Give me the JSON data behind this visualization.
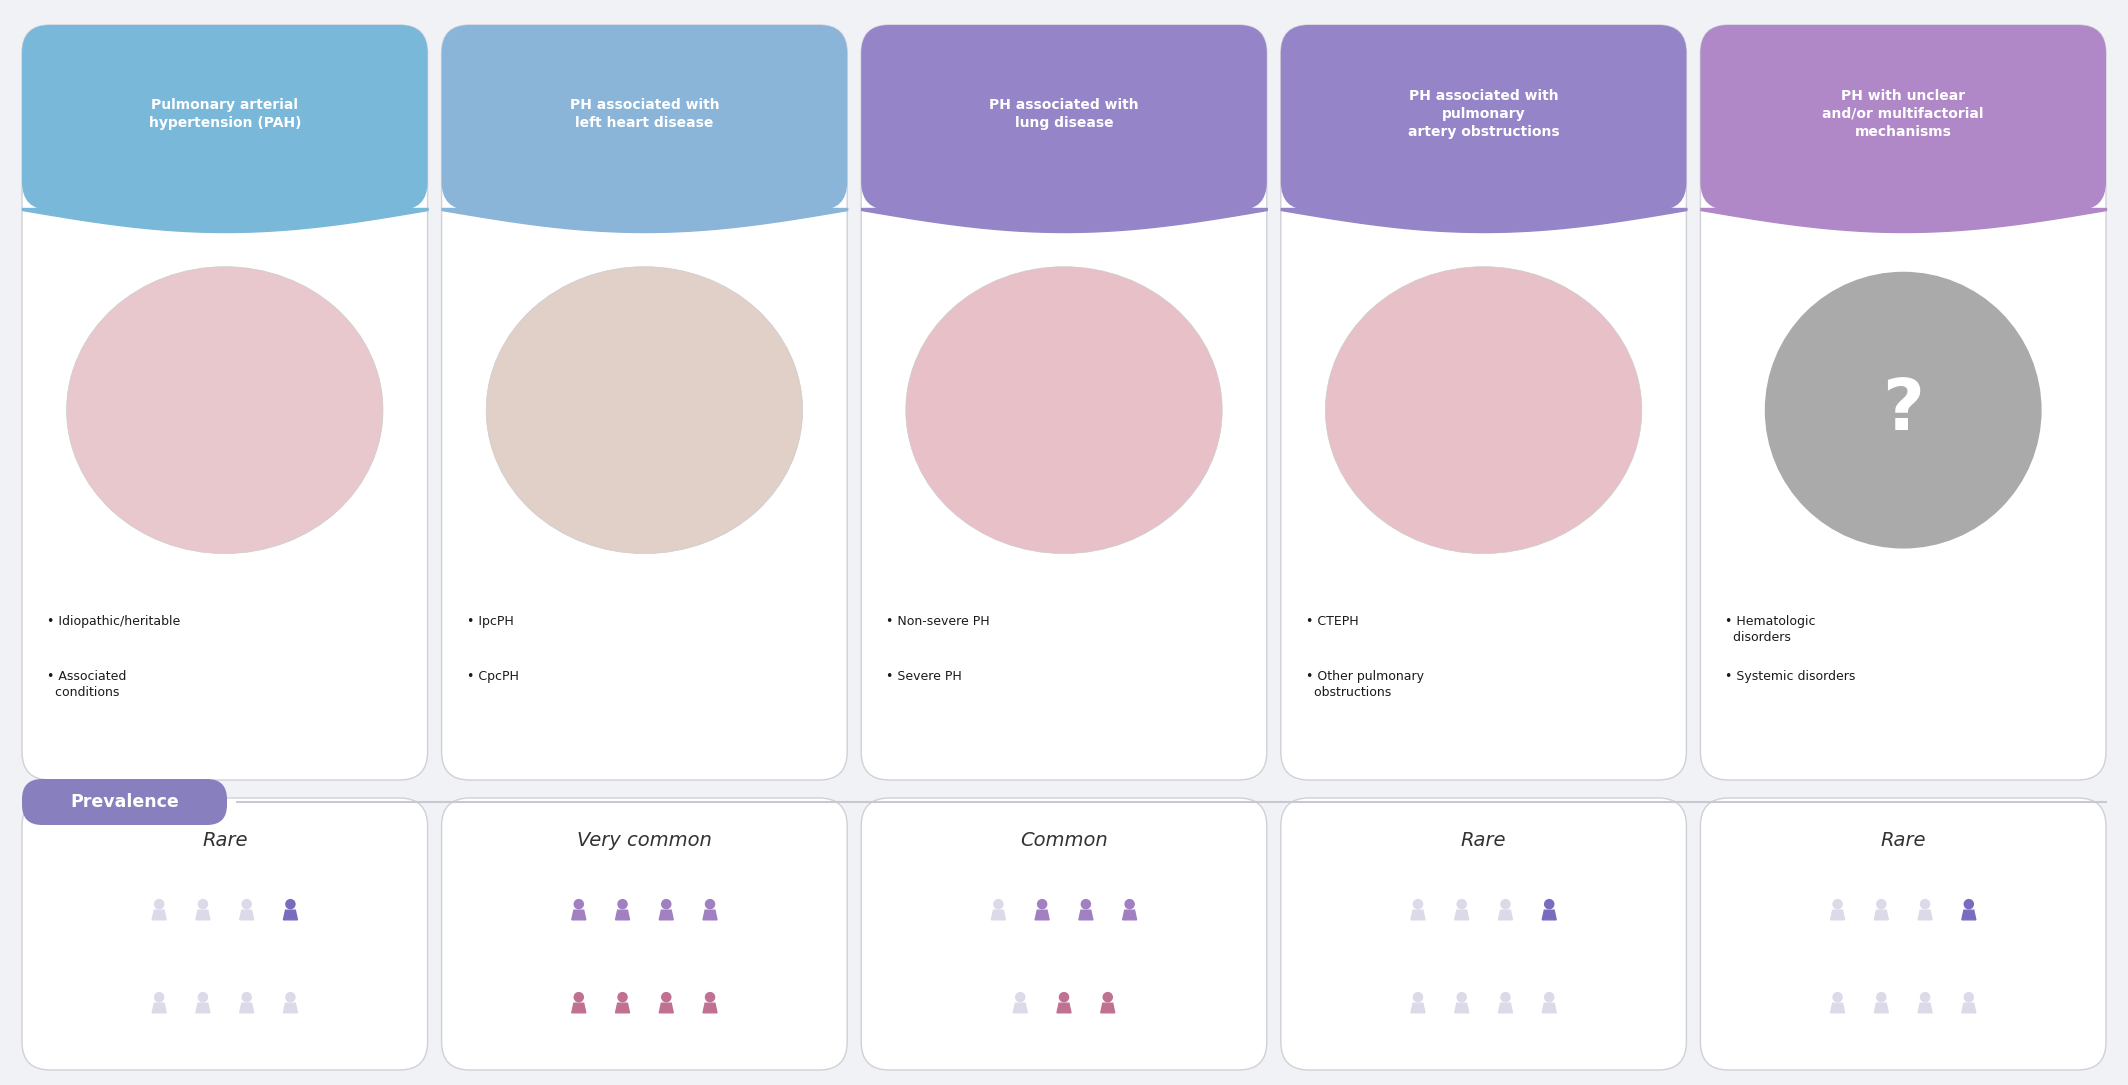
{
  "bg_color": "#f0f2f5",
  "card_bg": "#ffffff",
  "card_border": "#d0d0d8",
  "header_colors": [
    "#7ab8d9",
    "#8ab4d8",
    "#9585c8",
    "#9585c8",
    "#b088c8"
  ],
  "titles": [
    "Pulmonary arterial\nhypertension (PAH)",
    "PH associated with\nleft heart disease",
    "PH associated with\nlung disease",
    "PH associated with\npulmonary\nartery obstructions",
    "PH with unclear\nand/or multifactorial\nmechanisms"
  ],
  "bullets": [
    [
      "• Idiopathic/heritable",
      "• Associated\n  conditions"
    ],
    [
      "• IpcPH",
      "• CpcPH"
    ],
    [
      "• Non-severe PH",
      "• Severe PH"
    ],
    [
      "• CTEPH",
      "• Other pulmonary\n  obstructions"
    ],
    [
      "• Hematologic\n  disorders",
      "• Systemic disorders"
    ]
  ],
  "prevalence_labels": [
    "Rare",
    "Very common",
    "Common",
    "Rare",
    "Rare"
  ],
  "prevalence_label": "Prevalence",
  "prevalence_badge_color": "#8880be",
  "person_purple": "#7b6bbf",
  "person_purple2": "#a080c0",
  "person_light": "#c8c4d8",
  "person_lighter": "#dcdae8",
  "person_pink": "#c07090",
  "prev_row1_colored": [
    1,
    4,
    3,
    1,
    1
  ],
  "prev_row1_total": [
    4,
    4,
    4,
    4,
    4
  ],
  "prev_row2_colored": [
    0,
    4,
    2,
    0,
    0
  ],
  "prev_row2_total": [
    4,
    4,
    3,
    4,
    4
  ],
  "prev_row1_use_pink": [
    false,
    false,
    false,
    false,
    false
  ],
  "prev_row2_use_pink": [
    false,
    true,
    true,
    false,
    false
  ]
}
